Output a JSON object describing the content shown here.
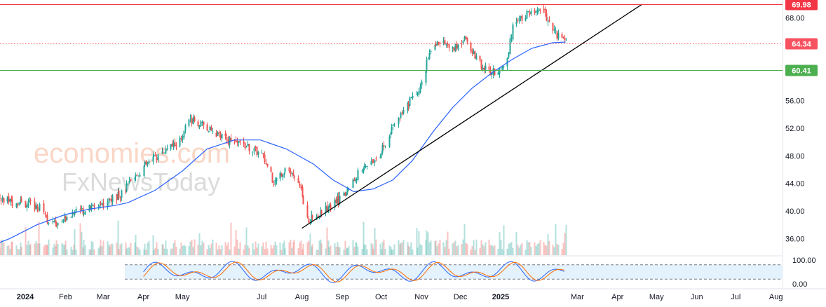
{
  "watermark": {
    "line1": "economies.com",
    "line2": "FxNewsToday"
  },
  "colors": {
    "up": "#26a69a",
    "down": "#ef5350",
    "ma": "#2962ff",
    "resistance": "#f23645",
    "current": "#f7525f",
    "support": "#4caf50",
    "trendline": "#000000",
    "stoch_k": "#2962ff",
    "stoch_d": "#ff6d00",
    "stoch_band": "#e3f2fd"
  },
  "chart_data": {
    "type": "candlestick",
    "price_axis": {
      "ticks": [
        "68.00",
        "56.00",
        "52.00",
        "48.00",
        "44.00",
        "40.00",
        "36.00"
      ],
      "range": [
        33.6,
        70.6
      ]
    },
    "indicator_axis": {
      "ticks": [
        "100.00",
        "0.00"
      ],
      "range": [
        0,
        100
      ],
      "band": [
        20,
        80
      ]
    },
    "time_axis": {
      "labels": [
        {
          "text": "2024",
          "bold": true,
          "date": "2024-01-01"
        },
        {
          "text": "Feb",
          "bold": false,
          "date": "2024-02-01"
        },
        {
          "text": "Mar",
          "bold": false,
          "date": "2024-03-01"
        },
        {
          "text": "Apr",
          "bold": false,
          "date": "2024-04-01"
        },
        {
          "text": "May",
          "bold": false,
          "date": "2024-05-01"
        },
        {
          "text": "Jul",
          "bold": false,
          "date": "2024-07-01"
        },
        {
          "text": "Aug",
          "bold": false,
          "date": "2024-08-01"
        },
        {
          "text": "Sep",
          "bold": false,
          "date": "2024-09-01"
        },
        {
          "text": "Oct",
          "bold": false,
          "date": "2024-10-01"
        },
        {
          "text": "Nov",
          "bold": false,
          "date": "2024-11-01"
        },
        {
          "text": "Dec",
          "bold": false,
          "date": "2024-12-01"
        },
        {
          "text": "2025",
          "bold": true,
          "date": "2025-01-01"
        },
        {
          "text": "Mar",
          "bold": false,
          "date": "2025-03-01"
        },
        {
          "text": "Apr",
          "bold": false,
          "date": "2025-04-01"
        },
        {
          "text": "May",
          "bold": false,
          "date": "2025-05-01"
        },
        {
          "text": "Jun",
          "bold": false,
          "date": "2025-06-01"
        },
        {
          "text": "Jul",
          "bold": false,
          "date": "2025-07-01"
        },
        {
          "text": "Aug",
          "bold": false,
          "date": "2025-08-01"
        }
      ],
      "range": [
        "2023-12-01",
        "2025-08-31"
      ]
    },
    "price_lines": [
      {
        "name": "resistance",
        "value": 69.98,
        "label": "69.98",
        "style": "solid"
      },
      {
        "name": "current",
        "value": 64.34,
        "label": "64.34",
        "style": "dotted"
      },
      {
        "name": "support",
        "value": 60.41,
        "label": "60.41",
        "style": "solid"
      }
    ],
    "trendline": {
      "from": [
        "2024-08-01",
        37.5
      ],
      "to": [
        "2025-04-20",
        70.0
      ]
    },
    "price_path": [
      [
        "2023-12-01",
        42.5
      ],
      [
        "2023-12-20",
        41.3
      ],
      [
        "2024-01-05",
        41.0
      ],
      [
        "2024-01-15",
        40.2
      ],
      [
        "2024-01-20",
        38.0
      ],
      [
        "2024-02-05",
        39.5
      ],
      [
        "2024-03-01",
        41.2
      ],
      [
        "2024-03-15",
        42.5
      ],
      [
        "2024-04-01",
        46.5
      ],
      [
        "2024-04-15",
        48.5
      ],
      [
        "2024-05-01",
        50.5
      ],
      [
        "2024-05-05",
        53.5
      ],
      [
        "2024-05-15",
        52.5
      ],
      [
        "2024-06-01",
        50.5
      ],
      [
        "2024-06-15",
        49.8
      ],
      [
        "2024-07-01",
        48.2
      ],
      [
        "2024-07-10",
        44.2
      ],
      [
        "2024-07-20",
        46.5
      ],
      [
        "2024-08-01",
        42.5
      ],
      [
        "2024-08-05",
        38.5
      ],
      [
        "2024-08-20",
        40.5
      ],
      [
        "2024-09-01",
        42.0
      ],
      [
        "2024-09-15",
        46.0
      ],
      [
        "2024-09-30",
        48.5
      ],
      [
        "2024-10-10",
        52.0
      ],
      [
        "2024-10-20",
        55.0
      ],
      [
        "2024-11-01",
        58.5
      ],
      [
        "2024-11-06",
        62.5
      ],
      [
        "2024-11-15",
        64.8
      ],
      [
        "2024-11-25",
        63.5
      ],
      [
        "2024-12-05",
        64.8
      ],
      [
        "2024-12-15",
        61.5
      ],
      [
        "2024-12-25",
        60.0
      ],
      [
        "2025-01-05",
        61.5
      ],
      [
        "2025-01-10",
        66.5
      ],
      [
        "2025-01-20",
        68.5
      ],
      [
        "2025-02-01",
        69.5
      ],
      [
        "2025-02-10",
        66.0
      ],
      [
        "2025-02-20",
        64.3
      ]
    ],
    "ma_path": [
      [
        "2023-12-01",
        34.6
      ],
      [
        "2023-12-20",
        36.0
      ],
      [
        "2024-01-10",
        38.0
      ],
      [
        "2024-02-01",
        39.5
      ],
      [
        "2024-02-20",
        40.3
      ],
      [
        "2024-03-10",
        40.8
      ],
      [
        "2024-03-20",
        41.2
      ],
      [
        "2024-04-10",
        43.0
      ],
      [
        "2024-05-01",
        45.8
      ],
      [
        "2024-05-20",
        49.0
      ],
      [
        "2024-06-10",
        50.3
      ],
      [
        "2024-06-30",
        50.3
      ],
      [
        "2024-07-20",
        49.0
      ],
      [
        "2024-08-10",
        46.8
      ],
      [
        "2024-08-25",
        44.5
      ],
      [
        "2024-09-10",
        42.8
      ],
      [
        "2024-09-25",
        43.2
      ],
      [
        "2024-10-10",
        44.5
      ],
      [
        "2024-10-25",
        47.3
      ],
      [
        "2024-11-10",
        51.5
      ],
      [
        "2024-11-25",
        55.0
      ],
      [
        "2024-12-10",
        57.8
      ],
      [
        "2024-12-25",
        60.0
      ],
      [
        "2025-01-10",
        62.0
      ],
      [
        "2025-01-25",
        63.6
      ],
      [
        "2025-02-10",
        64.4
      ],
      [
        "2025-02-20",
        64.5
      ]
    ],
    "volume_relative_range": [
      0,
      1
    ]
  }
}
